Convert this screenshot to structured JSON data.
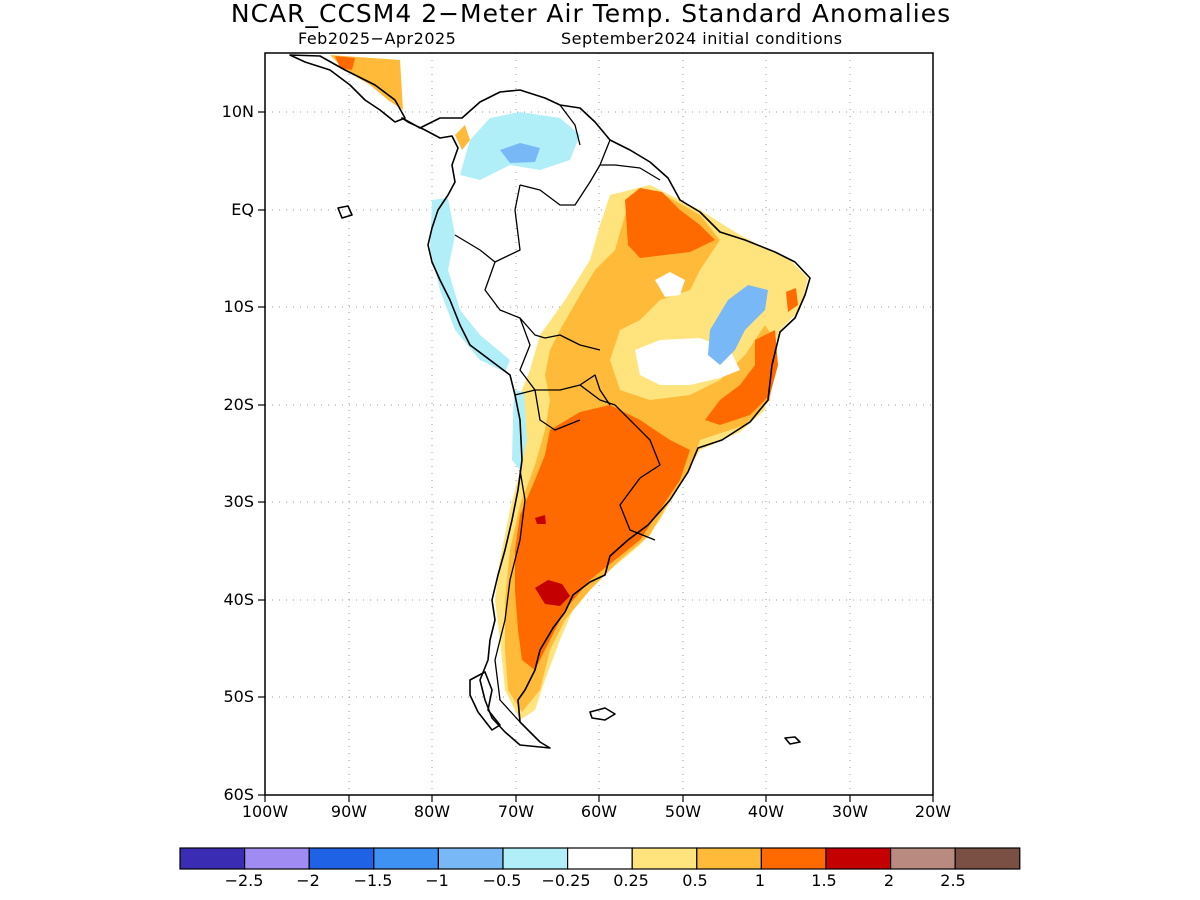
{
  "header": {
    "title": "NCAR_CCSM4 2−Meter Air Temp. Standard Anomalies",
    "period": "Feb2025−Apr2025",
    "init": "September2024 initial conditions"
  },
  "map": {
    "lat_labels": [
      "10N",
      "EQ",
      "10S",
      "20S",
      "30S",
      "40S",
      "50S",
      "60S"
    ],
    "lon_labels": [
      "100W",
      "90W",
      "80W",
      "70W",
      "60W",
      "50W",
      "40W",
      "30W",
      "20W"
    ]
  },
  "colorbar": {
    "colors": [
      "#3b2cb4",
      "#9f8bf2",
      "#1f62e6",
      "#3d92f2",
      "#78b8f6",
      "#b0eef8",
      "#ffffff",
      "#ffe47e",
      "#ffba3a",
      "#ff6a00",
      "#c40000",
      "#b88a80",
      "#7a5044"
    ],
    "labels": [
      "−2.5",
      "−2",
      "−1.5",
      "−1",
      "−0.5",
      "−0.25",
      "0.25",
      "0.5",
      "1",
      "1.5",
      "2",
      "2.5"
    ]
  }
}
